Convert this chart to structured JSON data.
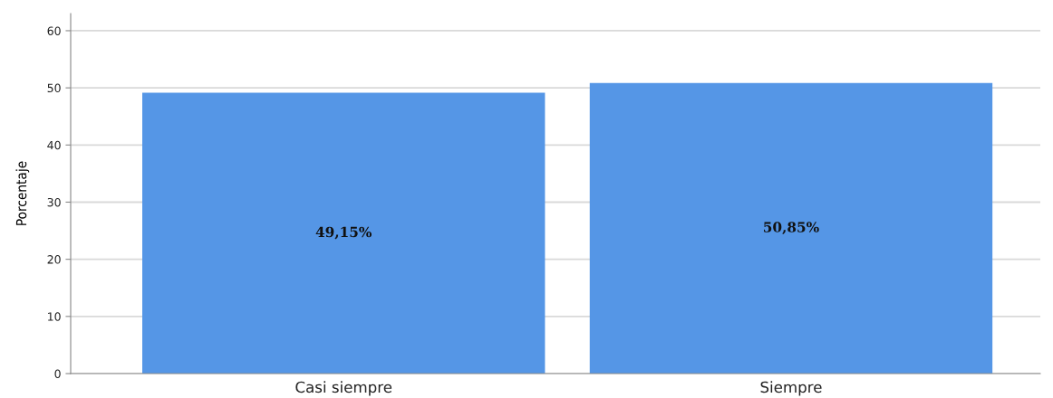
{
  "chart_data": {
    "type": "bar",
    "categories": [
      "Casi siempre",
      "Siempre"
    ],
    "values": [
      49.15,
      50.85
    ],
    "value_labels": [
      "49,15%",
      "50,85%"
    ],
    "color": "#5596e6",
    "ylabel": "Porcentaje",
    "ylim": [
      0,
      63
    ],
    "yticks": [
      0,
      10,
      20,
      30,
      40,
      50,
      60
    ],
    "grid": "y"
  }
}
